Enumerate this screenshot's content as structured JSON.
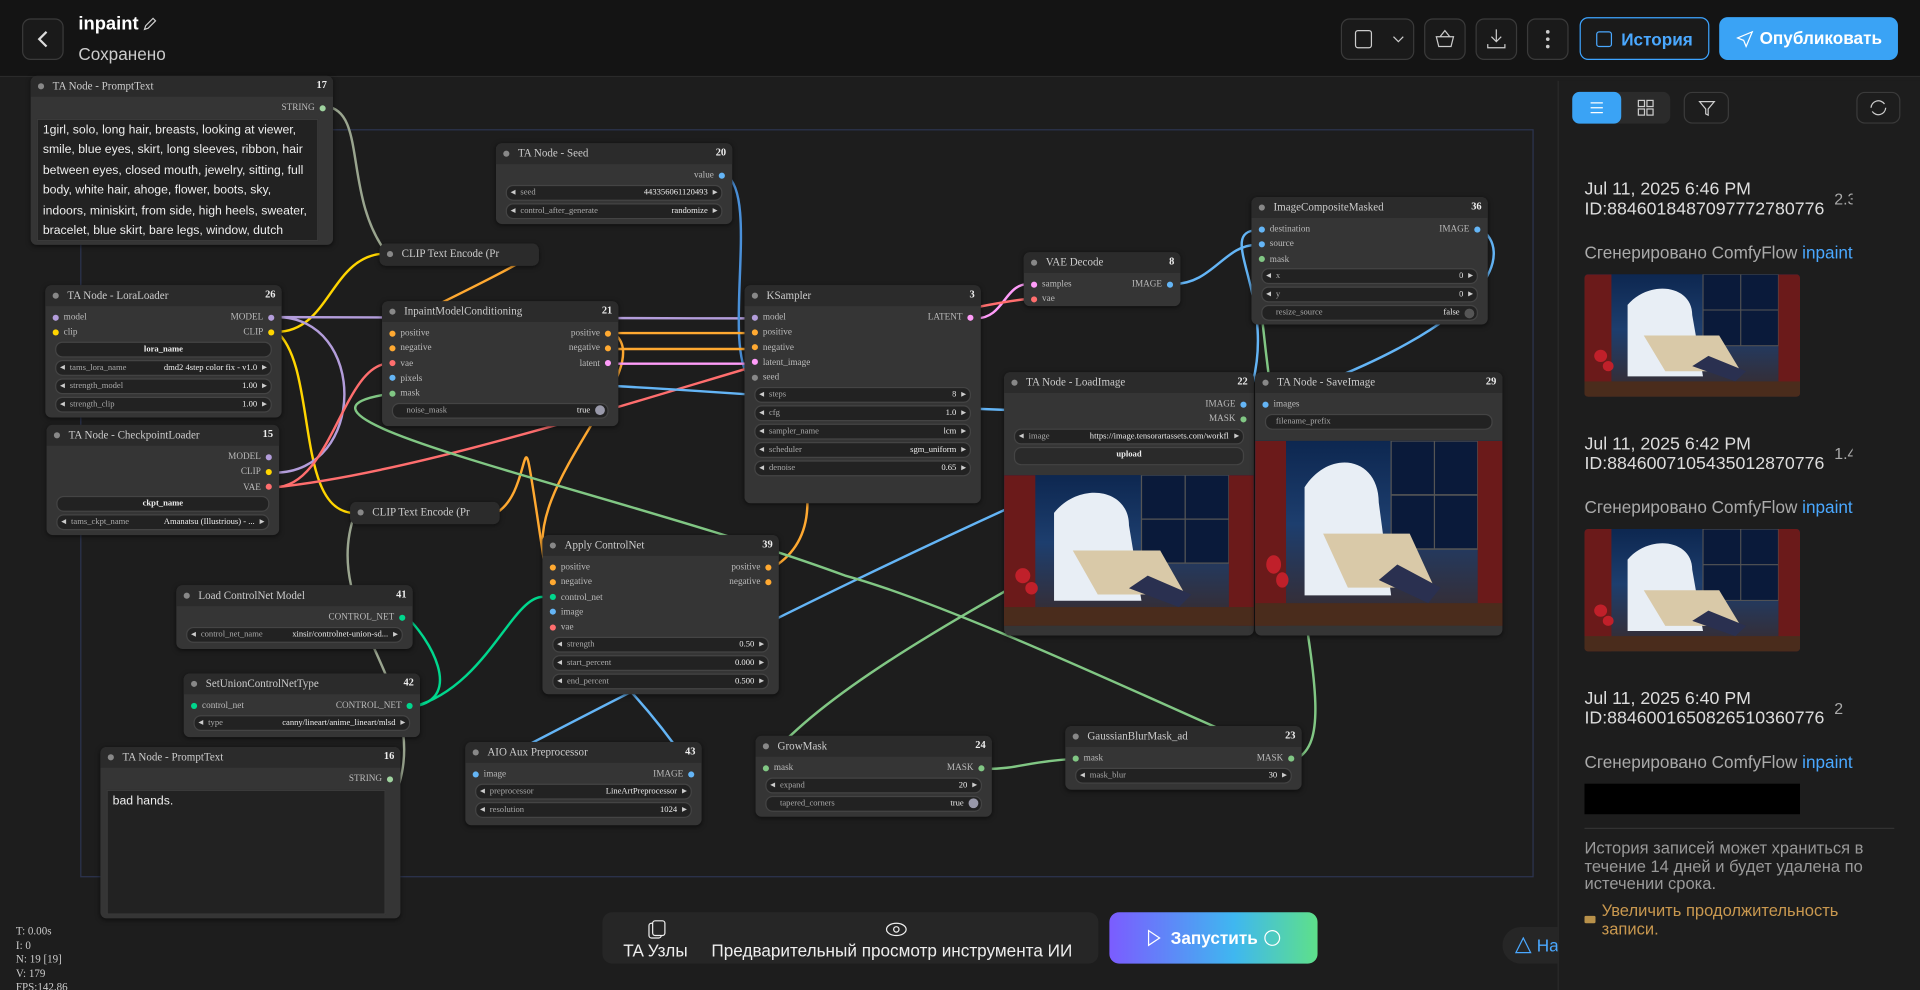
{
  "header": {
    "title": "inpaint",
    "status": "Сохранено",
    "history_button": "История",
    "publish_button": "Опубликовать"
  },
  "nodes": [
    {
      "title": "TA Node - PromptText",
      "id": 17,
      "outputs": [
        {
          "name": "STRING",
          "color": "#9fd39f"
        }
      ],
      "text": "1girl, solo, long hair, breasts, looking at viewer, smile, blue eyes, skirt, long sleeves, ribbon, hair between eyes, closed mouth, jewelry, sitting, full body, white hair, ahoge, flower, boots, sky, indoors, miniskirt, from side, high heels, sweater, bracelet, blue skirt, bare legs, window, dutch angle, night,"
    },
    {
      "title": "TA Node - Seed",
      "id": 20,
      "outputs": [
        {
          "name": "value",
          "color": "#64b5f6"
        }
      ],
      "widgets": [
        {
          "name": "seed",
          "value": "443356061120493"
        },
        {
          "name": "control_after_generate",
          "value": "randomize"
        }
      ]
    },
    {
      "title": "CLIP Text Encode (Pr"
    },
    {
      "title": "TA Node - LoraLoader",
      "id": 26,
      "inputs": [
        {
          "name": "model",
          "color": "#b39ddb"
        },
        {
          "name": "clip",
          "color": "#ffd500"
        }
      ],
      "outputs": [
        {
          "name": "MODEL",
          "color": "#b39ddb"
        },
        {
          "name": "CLIP",
          "color": "#ffd500"
        }
      ],
      "widgets": [
        {
          "name": "lora_name",
          "kind": "button"
        },
        {
          "name": "tams_lora_name",
          "value": "dmd2 4step color fix - v1.0"
        },
        {
          "name": "strength_model",
          "value": "1.00"
        },
        {
          "name": "strength_clip",
          "value": "1.00"
        }
      ]
    },
    {
      "title": "InpaintModelConditioning",
      "id": 21,
      "inputs": [
        {
          "name": "positive",
          "color": "#ffa931"
        },
        {
          "name": "negative",
          "color": "#ffa931"
        },
        {
          "name": "vae",
          "color": "#ff6e6e"
        },
        {
          "name": "pixels",
          "color": "#64b5f6"
        },
        {
          "name": "mask",
          "color": "#81c784"
        }
      ],
      "outputs": [
        {
          "name": "positive",
          "color": "#ffa931"
        },
        {
          "name": "negative",
          "color": "#ffa931"
        },
        {
          "name": "latent",
          "color": "#ff9cf9"
        }
      ],
      "widgets": [
        {
          "name": "noise_mask",
          "value": "true",
          "kind": "toggle"
        }
      ]
    },
    {
      "title": "KSampler",
      "id": 3,
      "inputs": [
        {
          "name": "model",
          "color": "#b39ddb"
        },
        {
          "name": "positive",
          "color": "#ffa931"
        },
        {
          "name": "negative",
          "color": "#ffa931"
        },
        {
          "name": "latent_image",
          "color": "#ff9cf9"
        },
        {
          "name": "seed",
          "color": "#888888"
        }
      ],
      "outputs": [
        {
          "name": "LATENT",
          "color": "#ff9cf9"
        }
      ],
      "widgets": [
        {
          "name": "steps",
          "value": "8"
        },
        {
          "name": "cfg",
          "value": "1.0"
        },
        {
          "name": "sampler_name",
          "value": "lcm"
        },
        {
          "name": "scheduler",
          "value": "sgm_uniform"
        },
        {
          "name": "denoise",
          "value": "0.65"
        }
      ]
    },
    {
      "title": "VAE Decode",
      "id": 8,
      "inputs": [
        {
          "name": "samples",
          "color": "#ff9cf9"
        },
        {
          "name": "vae",
          "color": "#ff6e6e"
        }
      ],
      "outputs": [
        {
          "name": "IMAGE",
          "color": "#64b5f6"
        }
      ]
    },
    {
      "title": "ImageCompositeMasked",
      "id": 36,
      "inputs": [
        {
          "name": "destination",
          "color": "#64b5f6"
        },
        {
          "name": "source",
          "color": "#64b5f6"
        },
        {
          "name": "mask",
          "color": "#81c784"
        }
      ],
      "outputs": [
        {
          "name": "IMAGE",
          "color": "#64b5f6"
        }
      ],
      "widgets": [
        {
          "name": "x",
          "value": "0"
        },
        {
          "name": "y",
          "value": "0"
        },
        {
          "name": "resize_source",
          "value": "false",
          "kind": "toggle"
        }
      ]
    },
    {
      "title": "TA Node - CheckpointLoader",
      "id": 15,
      "outputs": [
        {
          "name": "MODEL",
          "color": "#b39ddb"
        },
        {
          "name": "CLIP",
          "color": "#ffd500"
        },
        {
          "name": "VAE",
          "color": "#ff6e6e"
        }
      ],
      "widgets": [
        {
          "name": "ckpt_name",
          "kind": "button"
        },
        {
          "name": "tams_ckpt_name",
          "value": "Amanatsu (Illustrious) - ..."
        }
      ]
    },
    {
      "title": "CLIP Text Encode (Pr"
    },
    {
      "title": "TA Node - LoadImage",
      "id": 22,
      "outputs": [
        {
          "name": "IMAGE",
          "color": "#64b5f6"
        },
        {
          "name": "MASK",
          "color": "#81c784"
        }
      ],
      "widgets": [
        {
          "name": "image",
          "value": "https://image.tensorartassets.com/workfl..."
        },
        {
          "name": "upload",
          "kind": "button"
        }
      ]
    },
    {
      "title": "TA Node - SaveImage",
      "id": 29,
      "inputs": [
        {
          "name": "images",
          "color": "#64b5f6"
        }
      ],
      "widgets": [
        {
          "name": "filename_prefix",
          "kind": "text"
        }
      ]
    },
    {
      "title": "Apply ControlNet",
      "id": 39,
      "inputs": [
        {
          "name": "positive",
          "color": "#ffa931"
        },
        {
          "name": "negative",
          "color": "#ffa931"
        },
        {
          "name": "control_net",
          "color": "#00d78d"
        },
        {
          "name": "image",
          "color": "#64b5f6"
        },
        {
          "name": "vae",
          "color": "#ff6e6e"
        }
      ],
      "outputs": [
        {
          "name": "positive",
          "color": "#ffa931"
        },
        {
          "name": "negative",
          "color": "#ffa931"
        }
      ],
      "widgets": [
        {
          "name": "strength",
          "value": "0.50"
        },
        {
          "name": "start_percent",
          "value": "0.000"
        },
        {
          "name": "end_percent",
          "value": "0.500"
        }
      ]
    },
    {
      "title": "Load ControlNet Model",
      "id": 41,
      "outputs": [
        {
          "name": "CONTROL_NET",
          "color": "#00d78d"
        }
      ],
      "widgets": [
        {
          "name": "control_net_name",
          "value": "xinsir/controlnet-union-sd..."
        }
      ]
    },
    {
      "title": "SetUnionControlNetType",
      "id": 42,
      "inputs": [
        {
          "name": "control_net",
          "color": "#00d78d"
        }
      ],
      "outputs": [
        {
          "name": "CONTROL_NET",
          "color": "#00d78d"
        }
      ],
      "widgets": [
        {
          "name": "type",
          "value": "canny/lineart/anime_lineart/mlsd"
        }
      ]
    },
    {
      "title": "TA Node - PromptText",
      "id": 16,
      "outputs": [
        {
          "name": "STRING",
          "color": "#9fd39f"
        }
      ],
      "text": "bad hands."
    },
    {
      "title": "AIO Aux Preprocessor",
      "id": 43,
      "inputs": [
        {
          "name": "image",
          "color": "#64b5f6"
        }
      ],
      "outputs": [
        {
          "name": "IMAGE",
          "color": "#64b5f6"
        }
      ],
      "widgets": [
        {
          "name": "preprocessor",
          "value": "LineArtPreprocessor"
        },
        {
          "name": "resolution",
          "value": "1024"
        }
      ]
    },
    {
      "title": "GrowMask",
      "id": 24,
      "inputs": [
        {
          "name": "mask",
          "color": "#81c784"
        }
      ],
      "outputs": [
        {
          "name": "MASK",
          "color": "#81c784"
        }
      ],
      "widgets": [
        {
          "name": "expand",
          "value": "20"
        },
        {
          "name": "tapered_corners",
          "value": "true",
          "kind": "toggle"
        }
      ]
    },
    {
      "title": "GaussianBlurMask_ad",
      "id": 23,
      "inputs": [
        {
          "name": "mask",
          "color": "#81c784"
        }
      ],
      "outputs": [
        {
          "name": "MASK",
          "color": "#81c784"
        }
      ],
      "widgets": [
        {
          "name": "mask_blur",
          "value": "30"
        }
      ]
    }
  ],
  "stats": [
    "T: 0.00s",
    "I: 0",
    "N: 19 [19]",
    "V: 179",
    "FPS:142.86"
  ],
  "toolbar": {
    "nodes_button": "TA Узлы",
    "preview_button": "Предварительный просмотр инструмента ИИ",
    "run_button": "Запустить",
    "help_button": "На"
  },
  "history": {
    "entries": [
      {
        "date": "Jul 11, 2025 6:46 PM",
        "id": "ID:884601848709777278077​6",
        "cost": "2.3",
        "source": "Сгенерировано ComfyFlow",
        "workflow": "inpaint"
      },
      {
        "date": "Jul 11, 2025 6:42 PM",
        "id": "ID:884600710543501287077​6",
        "cost": "1.4",
        "source": "Сгенерировано ComfyFlow",
        "workflow": "inpaint"
      },
      {
        "date": "Jul 11, 2025 6:40 PM",
        "id": "ID:884600165082651036077​6",
        "cost": "2",
        "source": "Сгенерировано ComfyFlow",
        "workflow": "inpaint"
      }
    ],
    "note": "История записей может храниться в течение 14 дней и будет удалена по истечении срока.",
    "extend_link": "Увеличить продолжительность записи."
  }
}
